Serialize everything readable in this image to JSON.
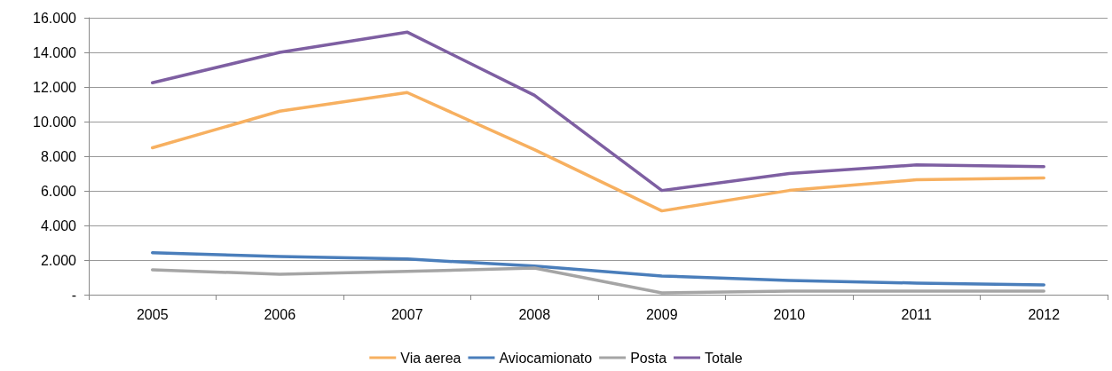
{
  "chart_data": {
    "type": "line",
    "categories": [
      "2005",
      "2006",
      "2007",
      "2008",
      "2009",
      "2010",
      "2011",
      "2012"
    ],
    "series": [
      {
        "name": "Via aerea",
        "color": "#f7b060",
        "values": [
          8490,
          10600,
          11680,
          8380,
          4840,
          6020,
          6640,
          6740
        ]
      },
      {
        "name": "Aviocamionato",
        "color": "#4a7ebb",
        "values": [
          2420,
          2200,
          2060,
          1650,
          1080,
          820,
          670,
          570
        ]
      },
      {
        "name": "Posta",
        "color": "#a5a5a5",
        "values": [
          1440,
          1180,
          1340,
          1540,
          100,
          200,
          200,
          200
        ]
      },
      {
        "name": "Totale",
        "color": "#7e5fa2",
        "values": [
          12240,
          14000,
          15170,
          11520,
          6020,
          7000,
          7500,
          7400
        ]
      }
    ],
    "ylim": [
      0,
      16000
    ],
    "yticks": [
      {
        "value": 0,
        "label": "-"
      },
      {
        "value": 2000,
        "label": "2.000"
      },
      {
        "value": 4000,
        "label": "4.000"
      },
      {
        "value": 6000,
        "label": "6.000"
      },
      {
        "value": 8000,
        "label": "8.000"
      },
      {
        "value": 10000,
        "label": "10.000"
      },
      {
        "value": 12000,
        "label": "12.000"
      },
      {
        "value": 14000,
        "label": "14.000"
      },
      {
        "value": 16000,
        "label": "16.000"
      }
    ],
    "grid": "y",
    "legend": "bottom",
    "marker": "none",
    "line_style": "solid"
  }
}
